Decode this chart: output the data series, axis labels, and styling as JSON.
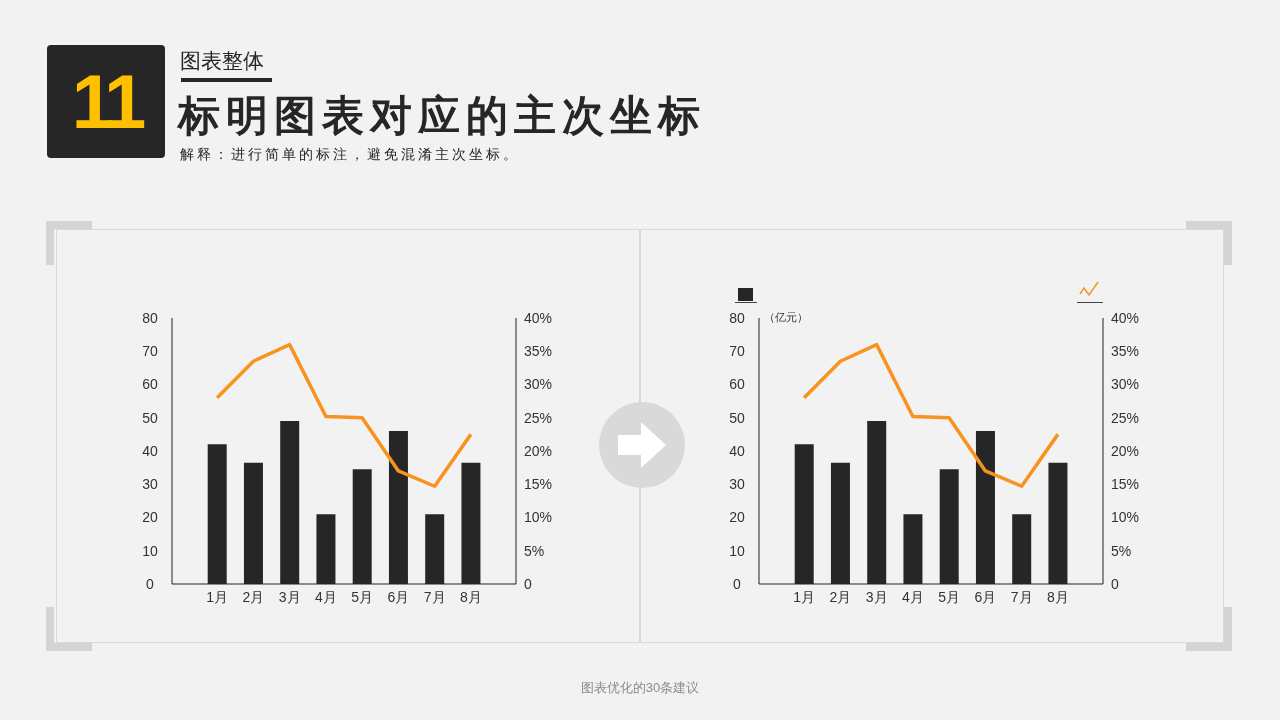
{
  "chart_data": [
    {
      "type": "bar",
      "title": "标明图表对应的主次坐标",
      "subtitle": "解释：进行简单的标注，避免混淆主次坐标。",
      "annotations": [
        "11",
        "图表整体",
        "图表优化的30条建议"
      ],
      "categories": [
        "1月",
        "2月",
        "3月",
        "4月",
        "5月",
        "6月",
        "7月",
        "8月"
      ],
      "series": [
        {
          "color": "#262626",
          "values": [
            42,
            36.5,
            49,
            21,
            34.5,
            46,
            21,
            36.5
          ]
        },
        {
          "type": "line",
          "axis": "y2",
          "color": "#f7931e",
          "values": [
            28,
            33.5,
            36,
            25.2,
            25,
            17,
            14.7,
            22.5
          ]
        }
      ],
      "ylim": [
        0,
        80
      ],
      "yticks": [
        0,
        10,
        20,
        30,
        40,
        50,
        60,
        70,
        80
      ],
      "y2lim": [
        0,
        40
      ],
      "y2ticks": [
        0,
        {
          "value": 5,
          "label": "5%"
        },
        {
          "value": 10,
          "label": "10%"
        },
        {
          "value": 15,
          "label": "15%"
        },
        {
          "value": 20,
          "label": "20%"
        },
        {
          "value": 25,
          "label": "25%"
        },
        {
          "value": 30,
          "label": "30%"
        },
        {
          "value": 35,
          "label": "35%"
        },
        {
          "value": 40,
          "label": "40%"
        }
      ],
      "grid": false,
      "marker": "none",
      "line_style": "solid"
    },
    {
      "type": "bar",
      "ylabel": "（亿元）",
      "categories": [
        "1月",
        "2月",
        "3月",
        "4月",
        "5月",
        "6月",
        "7月",
        "8月"
      ],
      "series": [
        {
          "color": "#262626",
          "values": [
            42,
            36.5,
            49,
            21,
            34.5,
            46,
            21,
            36.5
          ]
        },
        {
          "type": "line",
          "axis": "y2",
          "color": "#f7931e",
          "values": [
            28,
            33.5,
            36,
            25.2,
            25,
            17,
            14.7,
            22.5
          ]
        }
      ],
      "ylim": [
        0,
        80
      ],
      "yticks": [
        0,
        10,
        20,
        30,
        40,
        50,
        60,
        70,
        80
      ],
      "y2lim": [
        0,
        40
      ],
      "y2ticks": [
        0,
        {
          "value": 5,
          "label": "5%"
        },
        {
          "value": 10,
          "label": "10%"
        },
        {
          "value": 15,
          "label": "15%"
        },
        {
          "value": 20,
          "label": "20%"
        },
        {
          "value": 25,
          "label": "25%"
        },
        {
          "value": 30,
          "label": "30%"
        },
        {
          "value": 35,
          "label": "35%"
        },
        {
          "value": 40,
          "label": "40%"
        }
      ],
      "grid": false,
      "marker": "none",
      "line_style": "solid"
    }
  ]
}
